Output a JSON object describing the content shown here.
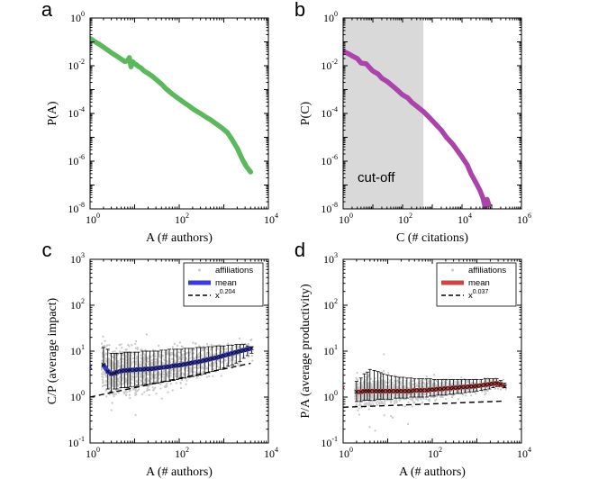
{
  "chart_data": [
    {
      "panel": "a",
      "type": "line",
      "xlabel": "A (# authors)",
      "ylabel": "P(A)",
      "xscale": "log",
      "yscale": "log",
      "xlim": [
        1,
        10000
      ],
      "ylim": [
        1e-08,
        1
      ],
      "xticks": [
        {
          "base": "10",
          "exp": "0"
        },
        {
          "base": "10",
          "exp": "2"
        },
        {
          "base": "10",
          "exp": "4"
        }
      ],
      "yticks": [
        {
          "base": "10",
          "exp": "0"
        },
        {
          "base": "10",
          "exp": "-2"
        },
        {
          "base": "10",
          "exp": "-4"
        },
        {
          "base": "10",
          "exp": "-6"
        },
        {
          "base": "10",
          "exp": "-8"
        }
      ],
      "series": [
        {
          "color": "#5cb85c",
          "x": [
            1,
            1.3,
            1.6,
            2,
            2.5,
            3,
            4,
            5,
            6,
            7,
            7.6,
            8.3,
            9,
            10,
            11,
            12,
            14,
            16,
            20,
            25,
            30,
            40,
            50,
            70,
            100,
            130,
            170,
            220,
            300,
            400,
            500,
            700,
            900,
            1200,
            1500,
            2000,
            2600,
            3200,
            4000
          ],
          "y": [
            0.14,
            0.1,
            0.08,
            0.06,
            0.045,
            0.035,
            0.025,
            0.019,
            0.015,
            0.016,
            0.022,
            0.009,
            0.015,
            0.012,
            0.011,
            0.0095,
            0.008,
            0.0062,
            0.0048,
            0.0036,
            0.0027,
            0.0017,
            0.0011,
            0.00065,
            0.0004,
            0.00028,
            0.0002,
            0.00014,
            0.0001,
            7e-05,
            5.5e-05,
            3.5e-05,
            2.5e-05,
            1.6e-05,
            8.5e-06,
            3.5e-06,
            1.2e-06,
            6e-07,
            3.5e-07
          ]
        }
      ]
    },
    {
      "panel": "b",
      "type": "line",
      "xlabel": "C (# citations)",
      "ylabel": "P(C)",
      "xscale": "log",
      "yscale": "log",
      "xlim": [
        1,
        1000000
      ],
      "ylim": [
        1e-08,
        1
      ],
      "xticks": [
        {
          "base": "10",
          "exp": "0"
        },
        {
          "base": "10",
          "exp": "2"
        },
        {
          "base": "10",
          "exp": "4"
        },
        {
          "base": "10",
          "exp": "6"
        }
      ],
      "yticks": [
        {
          "base": "10",
          "exp": "0"
        },
        {
          "base": "10",
          "exp": "-2"
        },
        {
          "base": "10",
          "exp": "-4"
        },
        {
          "base": "10",
          "exp": "-6"
        },
        {
          "base": "10",
          "exp": "-8"
        }
      ],
      "annotation": "cut-off",
      "shade_xrange": [
        1,
        500
      ],
      "shade_color": "#d9d9d9",
      "series": [
        {
          "color": "#aa44aa",
          "x": [
            1,
            1.5,
            2,
            3,
            4,
            6,
            8,
            10,
            15,
            20,
            30,
            50,
            70,
            100,
            150,
            200,
            300,
            500,
            700,
            1000,
            2000,
            3000,
            5000,
            10000,
            15000,
            20000,
            30000,
            40000,
            50000,
            60000,
            70000,
            80000
          ],
          "y": [
            0.04,
            0.032,
            0.026,
            0.02,
            0.013,
            0.012,
            0.008,
            0.006,
            0.0045,
            0.003,
            0.0022,
            0.0013,
            0.0009,
            0.0006,
            0.00045,
            0.0003,
            0.0002,
            0.00012,
            8e-05,
            5e-05,
            2e-05,
            1e-05,
            5e-06,
            1.5e-06,
            7e-07,
            3e-07,
            1.2e-07,
            6e-08,
            3e-08,
            1.2e-08,
            2.5e-08,
            1.5e-08
          ]
        }
      ]
    },
    {
      "panel": "c",
      "type": "scatter",
      "xlabel": "A (# authors)",
      "ylabel": "C/P (average impact)",
      "xscale": "log",
      "yscale": "log",
      "xlim": [
        1,
        10000
      ],
      "ylim": [
        0.1,
        1000
      ],
      "xticks": [
        {
          "base": "10",
          "exp": "0"
        },
        {
          "base": "10",
          "exp": "2"
        },
        {
          "base": "10",
          "exp": "4"
        }
      ],
      "yticks": [
        {
          "base": "10",
          "exp": "3"
        },
        {
          "base": "10",
          "exp": "2"
        },
        {
          "base": "10",
          "exp": "1"
        },
        {
          "base": "10",
          "exp": "0"
        },
        {
          "base": "10",
          "exp": "-1"
        }
      ],
      "legend": {
        "position": "top-right",
        "entries": [
          {
            "label": "affiliations",
            "style": "dots"
          },
          {
            "label": "mean",
            "style": "bar"
          },
          {
            "label": "x",
            "sup": "0.204",
            "style": "dash"
          }
        ]
      },
      "mean_color": "#3a3ad8",
      "fit": {
        "exponent": 0.204,
        "prefactor": 1.0
      },
      "mean_series": {
        "x": [
          1,
          2,
          2.5,
          3,
          3.5,
          4,
          5,
          6,
          7,
          8,
          10,
          12,
          15,
          18,
          22,
          27,
          33,
          40,
          50,
          60,
          75,
          90,
          110,
          135,
          165,
          200,
          250,
          300,
          370,
          450,
          550,
          680,
          830,
          1000,
          1250,
          1550,
          1900,
          2300,
          2800,
          3400,
          4200
        ],
        "y": [
          4.5,
          5,
          3.6,
          3.2,
          3.3,
          3.5,
          3.7,
          3.8,
          3.8,
          3.9,
          3.9,
          4,
          4,
          4.1,
          4.1,
          4.2,
          4.3,
          4.4,
          4.5,
          4.6,
          4.8,
          4.9,
          5,
          5.2,
          5.4,
          5.6,
          5.8,
          6,
          6.3,
          6.6,
          6.9,
          7.2,
          7.6,
          8,
          8.5,
          9,
          9.5,
          10,
          10.5,
          11,
          11.5
        ],
        "err_low": [
          4.5,
          5,
          1.5,
          1.3,
          1.5,
          1.5,
          1.6,
          1.6,
          1.6,
          1.7,
          1.7,
          1.8,
          1.8,
          1.9,
          1.9,
          2,
          2,
          2.1,
          2.2,
          2.2,
          2.3,
          2.4,
          2.5,
          2.6,
          2.7,
          2.8,
          2.9,
          3,
          3.2,
          3.4,
          3.6,
          3.8,
          4,
          4.3,
          4.7,
          5,
          5.5,
          6,
          7,
          8,
          9
        ],
        "err_high": [
          4.5,
          12,
          11,
          9,
          9,
          9,
          9,
          9.5,
          9.5,
          9.5,
          9.5,
          9.5,
          10,
          10,
          10,
          10,
          10,
          10.5,
          10.5,
          11,
          11,
          11,
          11,
          11.5,
          11.5,
          11.5,
          12,
          12,
          12,
          12.5,
          12.5,
          13,
          13,
          13,
          13.5,
          13.5,
          14,
          14,
          14,
          13,
          12.5
        ]
      }
    },
    {
      "panel": "d",
      "type": "scatter",
      "xlabel": "A (# authors)",
      "ylabel": "P/A (average productivity)",
      "xscale": "log",
      "yscale": "log",
      "xlim": [
        1,
        10000
      ],
      "ylim": [
        0.1,
        1000
      ],
      "xticks": [
        {
          "base": "10",
          "exp": "0"
        },
        {
          "base": "10",
          "exp": "2"
        },
        {
          "base": "10",
          "exp": "4"
        }
      ],
      "yticks": [
        {
          "base": "10",
          "exp": "3"
        },
        {
          "base": "10",
          "exp": "2"
        },
        {
          "base": "10",
          "exp": "1"
        },
        {
          "base": "10",
          "exp": "0"
        },
        {
          "base": "10",
          "exp": "-1"
        }
      ],
      "legend": {
        "position": "top-right",
        "entries": [
          {
            "label": "affiliations",
            "style": "dots"
          },
          {
            "label": "mean",
            "style": "bar"
          },
          {
            "label": "x",
            "sup": "0.037",
            "style": "dash"
          }
        ]
      },
      "mean_color": "#cc4444",
      "fit": {
        "exponent": 0.037,
        "prefactor": 0.6
      },
      "mean_series": {
        "x": [
          1,
          2,
          2.5,
          3,
          3.5,
          4,
          5,
          6,
          7,
          8,
          10,
          12,
          15,
          18,
          22,
          27,
          33,
          40,
          50,
          60,
          75,
          90,
          110,
          135,
          165,
          200,
          250,
          300,
          370,
          450,
          550,
          680,
          830,
          1000,
          1250,
          1550,
          1900,
          2300,
          2800,
          3400,
          4200
        ],
        "y": [
          1.6,
          1.3,
          1.3,
          1.35,
          1.35,
          1.35,
          1.35,
          1.35,
          1.35,
          1.35,
          1.35,
          1.35,
          1.35,
          1.35,
          1.35,
          1.35,
          1.35,
          1.4,
          1.4,
          1.4,
          1.4,
          1.45,
          1.45,
          1.5,
          1.5,
          1.55,
          1.55,
          1.6,
          1.6,
          1.65,
          1.65,
          1.7,
          1.7,
          1.75,
          1.8,
          1.85,
          1.9,
          1.95,
          2,
          1.9,
          1.7
        ],
        "err_low": [
          1.6,
          0.8,
          0.8,
          0.85,
          0.85,
          0.85,
          0.85,
          0.9,
          0.9,
          0.9,
          0.9,
          0.9,
          0.95,
          0.95,
          0.95,
          0.95,
          1,
          1,
          1,
          1,
          1,
          1.05,
          1.05,
          1.1,
          1.1,
          1.1,
          1.15,
          1.15,
          1.2,
          1.2,
          1.25,
          1.3,
          1.3,
          1.35,
          1.4,
          1.45,
          1.5,
          1.6,
          1.7,
          1.7,
          1.6
        ],
        "err_high": [
          1.6,
          2.2,
          2.6,
          3.2,
          3.5,
          4,
          3.8,
          3.6,
          3.4,
          3.2,
          3,
          2.9,
          2.8,
          2.7,
          2.7,
          2.6,
          2.6,
          2.5,
          2.5,
          2.5,
          2.5,
          2.5,
          2.4,
          2.4,
          2.4,
          2.4,
          2.4,
          2.4,
          2.4,
          2.4,
          2.4,
          2.4,
          2.4,
          2.4,
          2.4,
          2.5,
          2.5,
          2.5,
          2.5,
          2.3,
          2
        ]
      }
    }
  ],
  "panel_letters": [
    "a",
    "b",
    "c",
    "d"
  ],
  "scatter_color": "#c8c8c8"
}
